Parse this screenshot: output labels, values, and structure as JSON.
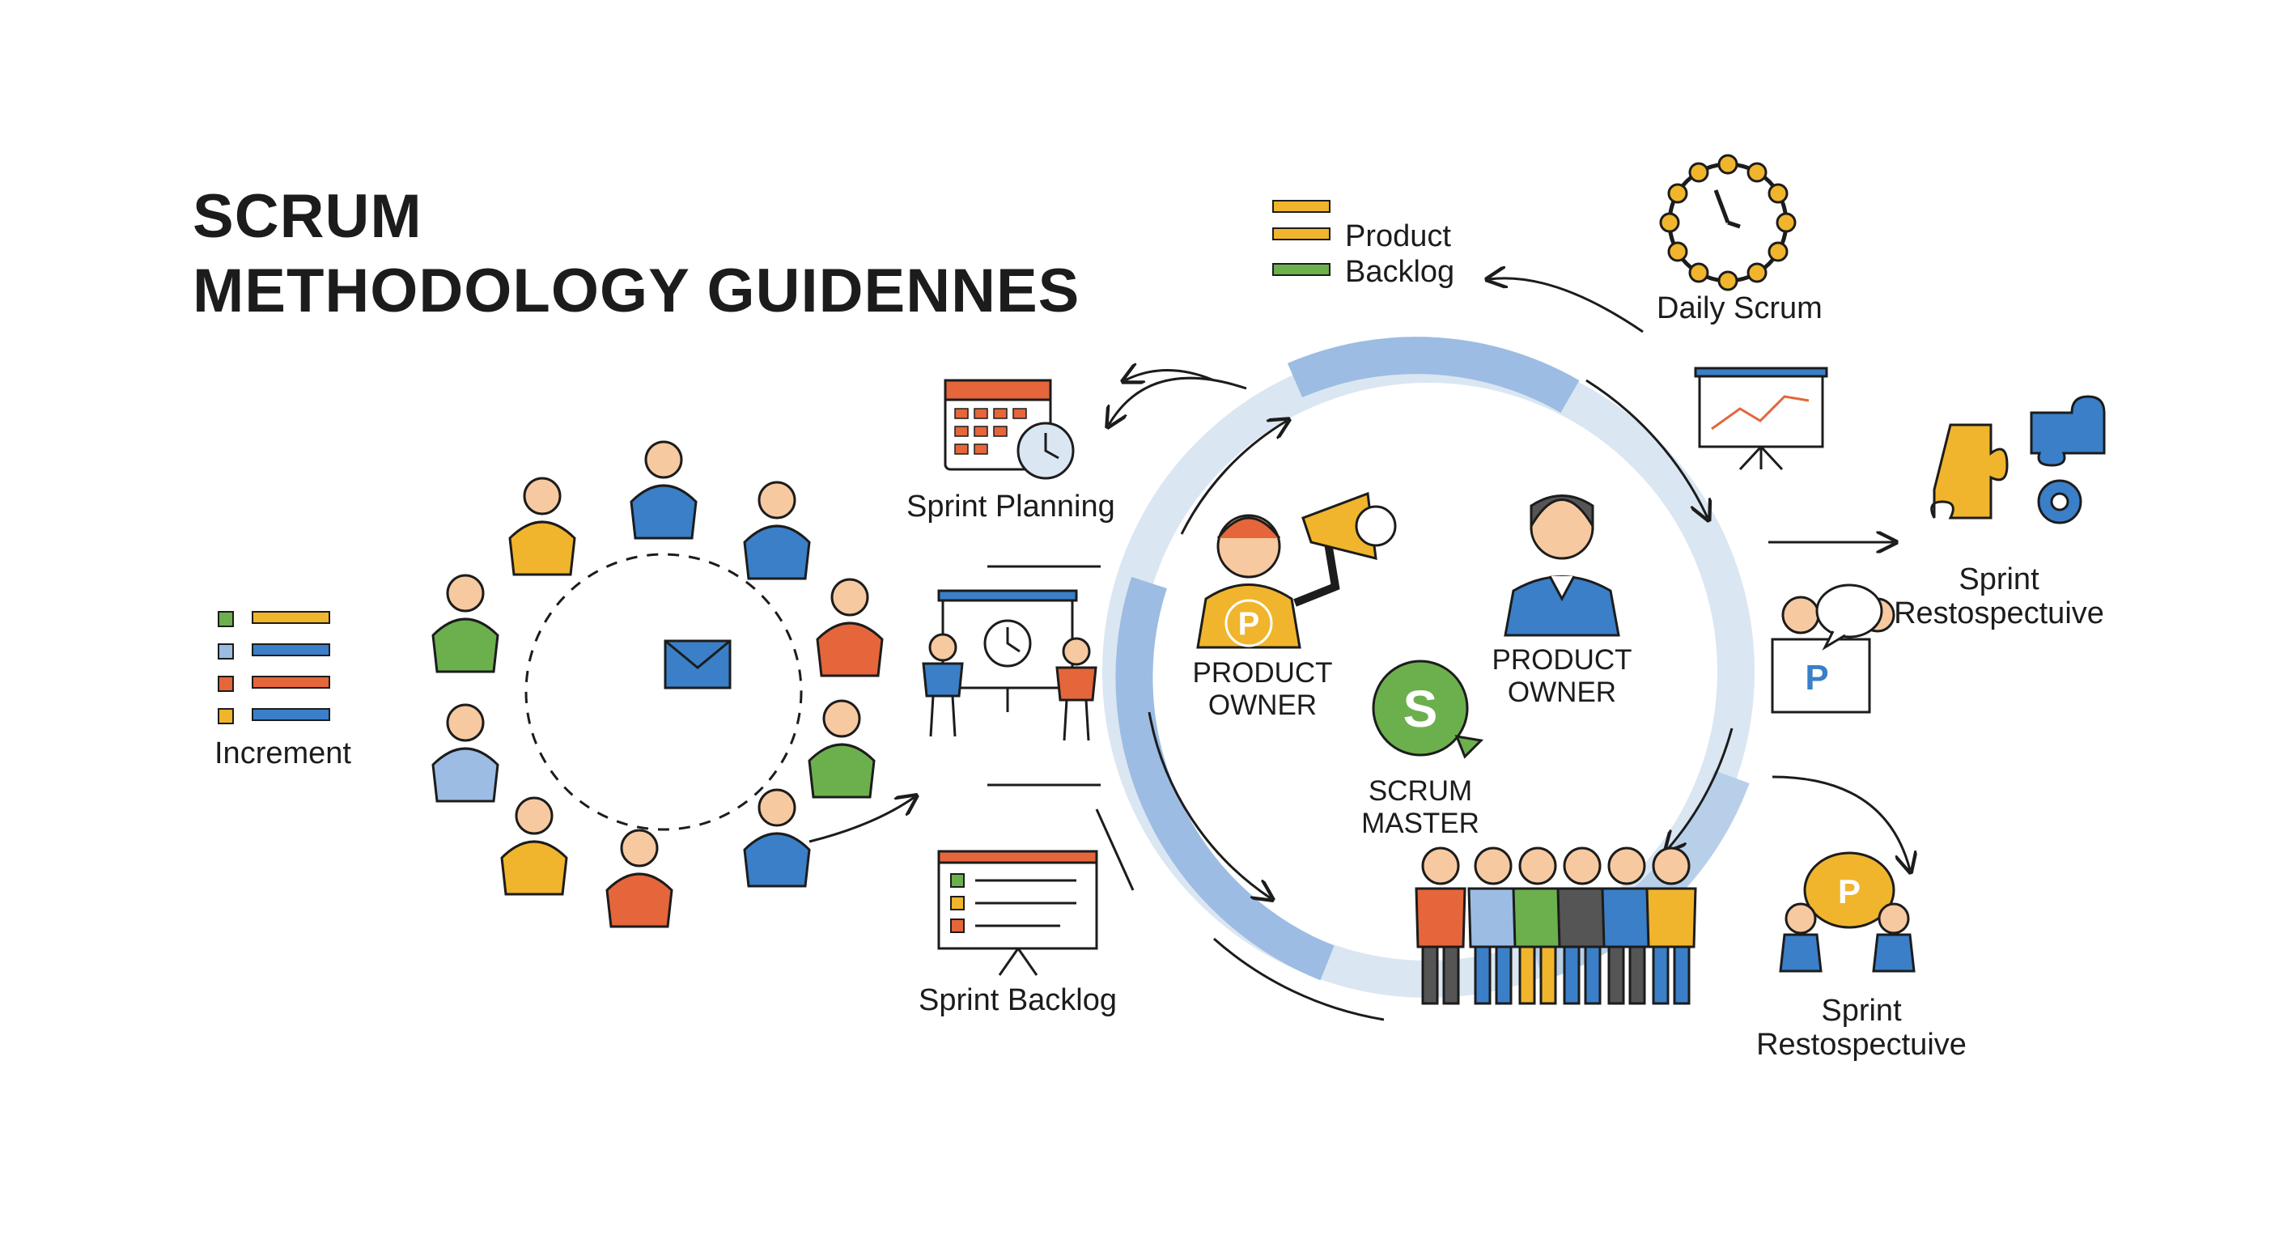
{
  "title": {
    "line1": "SCRUM",
    "line2": "METHODOLOGY GUIDENNES"
  },
  "labels": {
    "increment": "Increment",
    "sprint_planning": "Sprint Planning",
    "sprint_backlog": "Sprint Backlog",
    "product_backlog": [
      "Product",
      "Backlog"
    ],
    "daily_scrum": "Daily Scrum",
    "sprint_retro_top": [
      "Sprint",
      "Restospectuive"
    ],
    "sprint_retro_bottom": [
      "Sprint",
      "Restospectuive"
    ],
    "product_owner_left": [
      "PRODUCT",
      "OWNER"
    ],
    "product_owner_right": [
      "PRODUCT",
      "OWNER"
    ],
    "scrum_master": [
      "SCRUM",
      "MASTER"
    ]
  },
  "badges": {
    "product_owner_letter": "P",
    "scrum_master_letter": "S",
    "retro_letter": "P"
  },
  "colors": {
    "ink": "#1c1c1c",
    "blue": "#3a7fc8",
    "yellow": "#f0b52c",
    "orange": "#e5663a",
    "green": "#6cb04e",
    "light_blue": "#9cbce3",
    "red": "#d9533a",
    "skin": "#f7c9a0"
  }
}
